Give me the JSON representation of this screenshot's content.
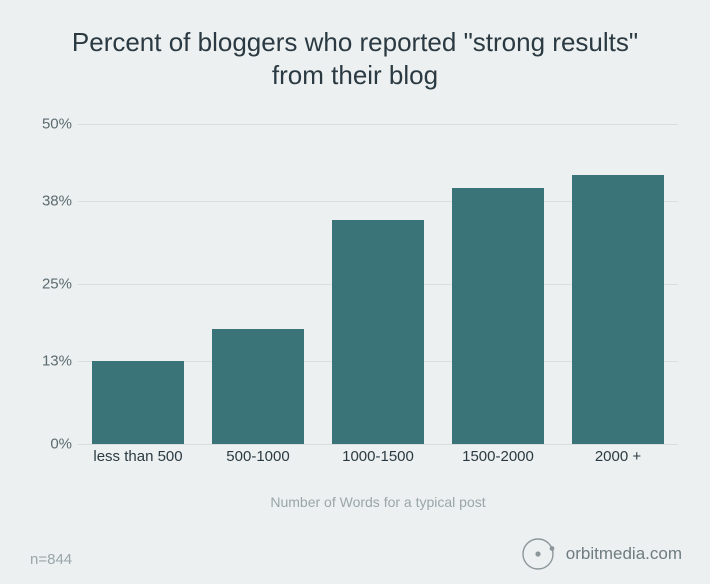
{
  "chart": {
    "type": "bar",
    "title": "Percent of bloggers who reported \"strong results\" from their blog",
    "title_fontsize": 26,
    "title_color": "#2b3a42",
    "background_color": "#ecf0f0",
    "bar_color": "#3a7479",
    "grid_color": "#d9dedf",
    "tick_color": "#5c6b70",
    "xlabel_color": "#2b3a42",
    "axis_title_color": "#9aa6a9",
    "ylim": [
      0,
      50
    ],
    "yticks": [
      0,
      13,
      25,
      38,
      50
    ],
    "ytick_suffix": "%",
    "categories": [
      "less than 500",
      "500-1000",
      "1000-1500",
      "1500-2000",
      "2000 +"
    ],
    "values": [
      13,
      18,
      35,
      40,
      42
    ],
    "xaxis_title": "Number of Words for a typical post",
    "bar_width_pct": 76,
    "label_fontsize": 15
  },
  "footer": {
    "sample_label": "n=844",
    "brand_text": "orbitmedia.com",
    "brand_color": "#6f7c80"
  }
}
